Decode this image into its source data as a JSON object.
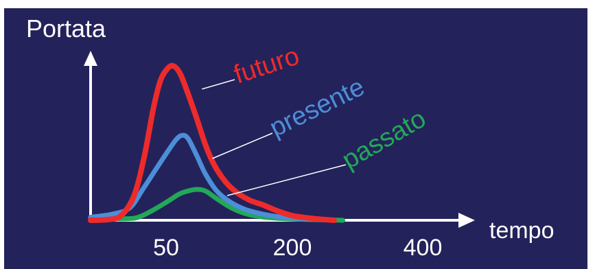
{
  "chart_data": {
    "type": "line",
    "ylabel": "Portata",
    "xlabel": "tempo",
    "x_ticks": [
      {
        "label": "50",
        "value": 50
      },
      {
        "label": "200",
        "value": 200
      },
      {
        "label": "400",
        "value": 400
      }
    ],
    "xlim": [
      0,
      445
    ],
    "ylim": [
      0,
      100
    ],
    "grid": false,
    "series": [
      {
        "name": "futuro",
        "color": "#ee2b2b",
        "points": [
          [
            0,
            0
          ],
          [
            20,
            0.5
          ],
          [
            35,
            3
          ],
          [
            50,
            16
          ],
          [
            62,
            42
          ],
          [
            72,
            72
          ],
          [
            80,
            90
          ],
          [
            88,
            98
          ],
          [
            95,
            100
          ],
          [
            103,
            95
          ],
          [
            112,
            82
          ],
          [
            122,
            66
          ],
          [
            132,
            49
          ],
          [
            142,
            36
          ],
          [
            155,
            25
          ],
          [
            168,
            18
          ],
          [
            183,
            13
          ],
          [
            198,
            10
          ],
          [
            215,
            6
          ],
          [
            232,
            3
          ],
          [
            250,
            1.5
          ],
          [
            268,
            0.5
          ],
          [
            280,
            0
          ]
        ]
      },
      {
        "name": "presente",
        "color": "#4c8ed8",
        "points": [
          [
            0,
            2
          ],
          [
            25,
            4
          ],
          [
            45,
            8
          ],
          [
            60,
            20
          ],
          [
            75,
            33
          ],
          [
            88,
            44
          ],
          [
            98,
            52
          ],
          [
            105,
            55
          ],
          [
            112,
            53
          ],
          [
            122,
            42
          ],
          [
            132,
            30
          ],
          [
            145,
            19
          ],
          [
            160,
            12
          ],
          [
            178,
            7
          ],
          [
            198,
            4
          ],
          [
            220,
            2
          ],
          [
            245,
            1
          ],
          [
            268,
            0.5
          ],
          [
            280,
            0
          ]
        ]
      },
      {
        "name": "passato",
        "color": "#22a858",
        "points": [
          [
            0,
            1
          ],
          [
            40,
            1
          ],
          [
            55,
            2
          ],
          [
            70,
            6
          ],
          [
            88,
            12
          ],
          [
            102,
            17
          ],
          [
            112,
            19
          ],
          [
            122,
            20
          ],
          [
            132,
            19
          ],
          [
            145,
            14
          ],
          [
            162,
            8
          ],
          [
            180,
            4
          ],
          [
            200,
            2
          ],
          [
            225,
            1
          ],
          [
            250,
            0.5
          ],
          [
            290,
            0
          ]
        ]
      }
    ],
    "annotations": [
      {
        "text": "futuro",
        "series": "futuro",
        "anchor": [
          128,
          85
        ],
        "color": "#ee2b2b"
      },
      {
        "text": "presente",
        "series": "presente",
        "anchor": [
          140,
          40
        ],
        "color": "#4c8ed8"
      },
      {
        "text": "passato",
        "series": "passato",
        "anchor": [
          157,
          16
        ],
        "color": "#22a858"
      }
    ],
    "colors": {
      "background": "#24225a",
      "axis": "#ffffff",
      "text": "#ffffff"
    }
  }
}
